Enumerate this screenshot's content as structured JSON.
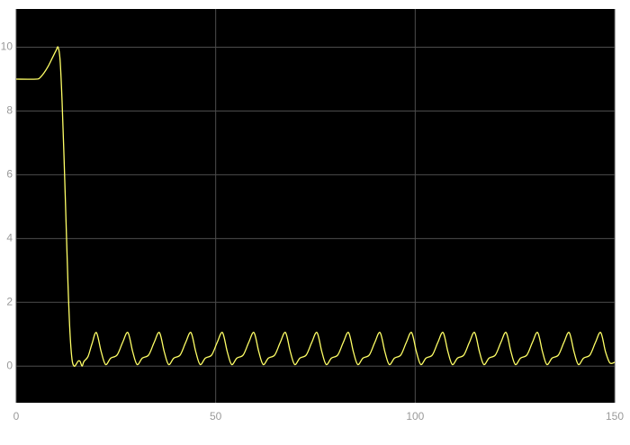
{
  "chart_data": {
    "type": "line",
    "x": [
      0,
      5,
      6,
      7,
      8,
      9,
      10,
      10.5,
      11,
      11.5,
      12,
      12.5,
      13,
      13.5,
      14,
      14.5,
      15,
      15.5,
      16,
      16.5,
      17,
      18,
      19,
      20.1,
      21.3,
      22.4,
      23.7,
      25.3,
      26.7,
      28.0,
      29.2,
      30.3,
      31.6,
      33.2,
      34.6,
      35.9,
      37.1,
      38.2,
      39.5,
      41.1,
      42.5,
      43.8,
      45.0,
      46.1,
      47.4,
      49.0,
      50.4,
      51.7,
      52.9,
      54.0,
      55.3,
      56.9,
      58.3,
      59.6,
      60.8,
      61.9,
      63.2,
      64.8,
      66.2,
      67.5,
      68.7,
      69.8,
      71.1,
      72.7,
      74.1,
      75.4,
      76.6,
      77.7,
      79.0,
      80.6,
      82.0,
      83.3,
      84.5,
      85.6,
      86.9,
      88.5,
      89.9,
      91.2,
      92.4,
      93.5,
      94.8,
      96.4,
      97.8,
      99.1,
      100.3,
      101.4,
      102.7,
      104.3,
      105.7,
      107.0,
      108.2,
      109.3,
      110.6,
      112.2,
      113.6,
      114.9,
      116.1,
      117.2,
      118.5,
      120.1,
      121.5,
      122.8,
      124.0,
      125.1,
      126.4,
      128.0,
      129.4,
      130.7,
      131.9,
      133.0,
      134.3,
      135.9,
      137.3,
      138.6,
      139.8,
      140.9,
      142.2,
      143.8,
      145.2,
      146.5,
      147.7,
      148.8,
      150
    ],
    "series": [
      {
        "color": "#ffff66",
        "values": [
          9,
          9,
          9.05,
          9.2,
          9.4,
          9.65,
          9.9,
          10,
          9.6,
          8.3,
          6.5,
          4.5,
          2.5,
          1.0,
          0.2,
          0.0,
          0.05,
          0.15,
          0.15,
          0.0,
          0.15,
          0.3,
          0.7,
          1.05,
          0.45,
          0.05,
          0.25,
          0.35,
          0.75,
          1.05,
          0.45,
          0.05,
          0.25,
          0.35,
          0.75,
          1.05,
          0.45,
          0.05,
          0.25,
          0.35,
          0.75,
          1.05,
          0.45,
          0.05,
          0.25,
          0.35,
          0.75,
          1.05,
          0.45,
          0.05,
          0.25,
          0.35,
          0.75,
          1.05,
          0.45,
          0.05,
          0.25,
          0.35,
          0.75,
          1.05,
          0.45,
          0.05,
          0.25,
          0.35,
          0.75,
          1.05,
          0.45,
          0.05,
          0.25,
          0.35,
          0.75,
          1.05,
          0.45,
          0.05,
          0.25,
          0.35,
          0.75,
          1.05,
          0.45,
          0.05,
          0.25,
          0.35,
          0.75,
          1.05,
          0.45,
          0.05,
          0.25,
          0.35,
          0.75,
          1.05,
          0.45,
          0.05,
          0.25,
          0.35,
          0.75,
          1.05,
          0.45,
          0.05,
          0.25,
          0.35,
          0.75,
          1.05,
          0.45,
          0.05,
          0.25,
          0.35,
          0.75,
          1.05,
          0.45,
          0.05,
          0.25,
          0.35,
          0.75,
          1.05,
          0.45,
          0.05,
          0.25,
          0.35,
          0.75,
          1.05,
          0.45,
          0.1,
          0.12
        ]
      }
    ],
    "xlim": [
      0,
      150
    ],
    "xticks": [
      0,
      50,
      100,
      150
    ],
    "ylim": [
      -1.15,
      11.2
    ],
    "yticks": [
      0,
      2,
      4,
      6,
      8,
      10
    ],
    "grid": true,
    "background": "#000000",
    "grid_color": "#4d4d4d"
  }
}
